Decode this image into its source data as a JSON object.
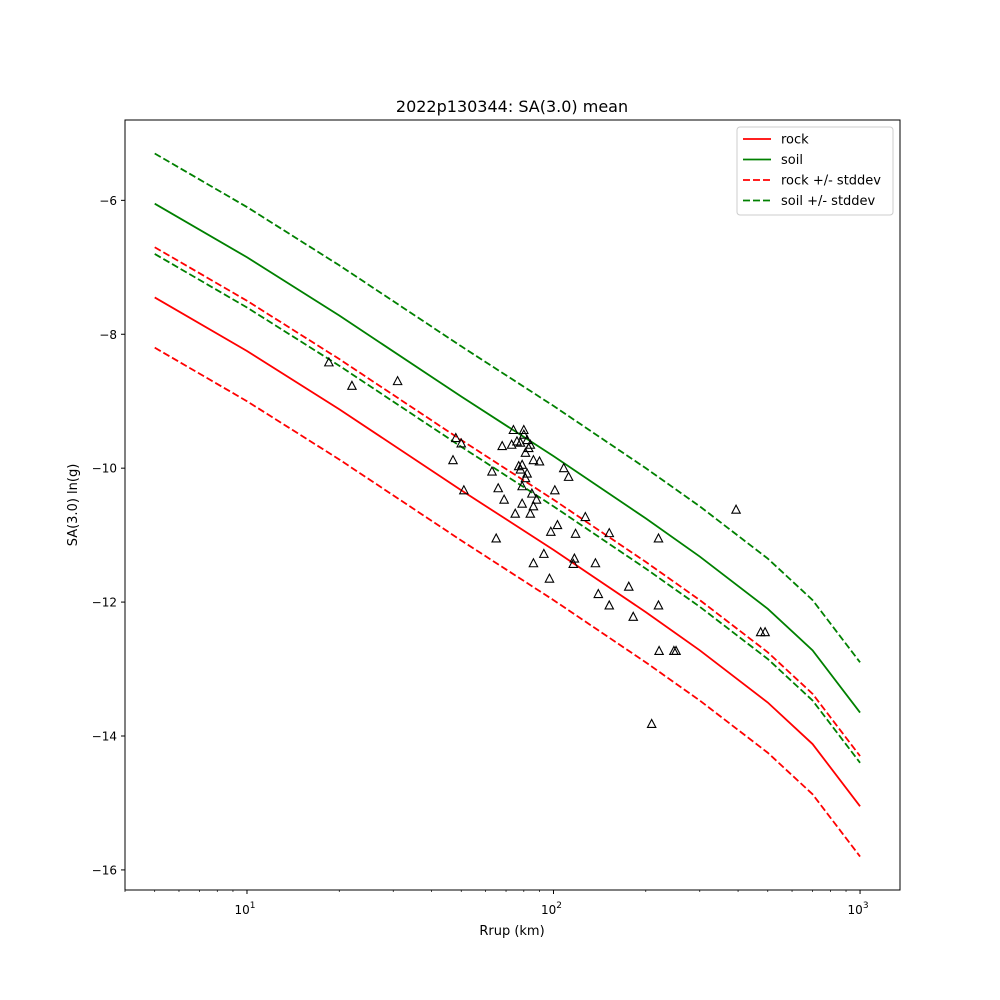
{
  "chart_data": {
    "type": "line",
    "title": "2022p130344: SA(3.0) mean",
    "xlabel": "Rrup (km)",
    "ylabel": "SA(3.0) ln(g)",
    "xscale": "log",
    "xlim": [
      4,
      1350
    ],
    "ylim": [
      -16.3,
      -4.8
    ],
    "xticks": [
      {
        "value": 10,
        "base": "10",
        "exp": "1"
      },
      {
        "value": 100,
        "base": "10",
        "exp": "2"
      },
      {
        "value": 1000,
        "base": "10",
        "exp": "3"
      }
    ],
    "yticks": [
      {
        "value": -16,
        "label": "−16"
      },
      {
        "value": -14,
        "label": "−14"
      },
      {
        "value": -12,
        "label": "−12"
      },
      {
        "value": -10,
        "label": "−10"
      },
      {
        "value": -8,
        "label": "−8"
      },
      {
        "value": -6,
        "label": "−6"
      }
    ],
    "grid": false,
    "legend_position": "top-right",
    "legend": [
      {
        "label": "rock",
        "color": "#ff0000",
        "dash": "solid"
      },
      {
        "label": "soil",
        "color": "#008000",
        "dash": "solid"
      },
      {
        "label": "rock +/- stddev",
        "color": "#ff0000",
        "dash": "dashed"
      },
      {
        "label": "soil +/- stddev",
        "color": "#008000",
        "dash": "dashed"
      }
    ],
    "x": [
      5,
      10,
      20,
      50,
      100,
      200,
      300,
      500,
      700,
      1000
    ],
    "series": [
      {
        "name": "rock",
        "color": "#ff0000",
        "dash": "solid",
        "values": [
          -7.45,
          -8.25,
          -9.12,
          -10.33,
          -11.22,
          -12.15,
          -12.72,
          -13.5,
          -14.12,
          -15.05
        ]
      },
      {
        "name": "soil",
        "color": "#008000",
        "dash": "solid",
        "values": [
          -6.05,
          -6.85,
          -7.72,
          -8.93,
          -9.82,
          -10.75,
          -11.32,
          -12.1,
          -12.72,
          -13.65
        ]
      },
      {
        "name": "rock +/- stddev",
        "color": "#ff0000",
        "dash": "dashed",
        "values": [
          -6.7,
          -7.5,
          -8.37,
          -9.58,
          -10.47,
          -11.4,
          -11.97,
          -12.75,
          -13.37,
          -14.3
        ]
      },
      {
        "name": "rock +/- stddev",
        "color": "#ff0000",
        "dash": "dashed",
        "legend": false,
        "values": [
          -8.2,
          -9.0,
          -9.87,
          -11.08,
          -11.97,
          -12.9,
          -13.47,
          -14.25,
          -14.87,
          -15.8
        ]
      },
      {
        "name": "soil +/- stddev",
        "color": "#008000",
        "dash": "dashed",
        "values": [
          -5.3,
          -6.1,
          -6.97,
          -8.18,
          -9.07,
          -10.0,
          -10.57,
          -11.35,
          -11.97,
          -12.9
        ]
      },
      {
        "name": "soil +/- stddev",
        "color": "#008000",
        "dash": "dashed",
        "legend": false,
        "values": [
          -6.8,
          -7.6,
          -8.47,
          -9.68,
          -10.57,
          -11.5,
          -12.07,
          -12.85,
          -13.47,
          -14.4
        ]
      }
    ],
    "observations": {
      "marker": "triangle",
      "points": [
        [
          18.5,
          -8.42
        ],
        [
          22,
          -8.77
        ],
        [
          31,
          -8.7
        ],
        [
          47,
          -9.88
        ],
        [
          48,
          -9.55
        ],
        [
          50,
          -9.63
        ],
        [
          51,
          -10.33
        ],
        [
          63,
          -10.05
        ],
        [
          65,
          -11.05
        ],
        [
          66,
          -10.3
        ],
        [
          68,
          -9.67
        ],
        [
          69,
          -10.47
        ],
        [
          73,
          -9.65
        ],
        [
          74,
          -9.43
        ],
        [
          75,
          -10.68
        ],
        [
          76,
          -9.6
        ],
        [
          77,
          -9.97
        ],
        [
          78,
          -10.02
        ],
        [
          78,
          -9.62
        ],
        [
          79,
          -9.95
        ],
        [
          79,
          -10.27
        ],
        [
          79,
          -10.53
        ],
        [
          80,
          -9.5
        ],
        [
          80,
          -9.43
        ],
        [
          81,
          -10.15
        ],
        [
          81,
          -9.77
        ],
        [
          82,
          -9.58
        ],
        [
          82,
          -10.08
        ],
        [
          83,
          -9.7
        ],
        [
          84,
          -9.65
        ],
        [
          84,
          -10.68
        ],
        [
          85,
          -10.38
        ],
        [
          86,
          -9.88
        ],
        [
          86,
          -10.57
        ],
        [
          86,
          -11.42
        ],
        [
          88,
          -10.47
        ],
        [
          90,
          -9.9
        ],
        [
          93,
          -11.28
        ],
        [
          97,
          -11.65
        ],
        [
          98,
          -10.95
        ],
        [
          101,
          -10.33
        ],
        [
          103,
          -10.85
        ],
        [
          108,
          -10.0
        ],
        [
          112,
          -10.13
        ],
        [
          116,
          -11.43
        ],
        [
          117,
          -11.35
        ],
        [
          118,
          -10.98
        ],
        [
          127,
          -10.73
        ],
        [
          137,
          -11.42
        ],
        [
          140,
          -11.88
        ],
        [
          152,
          -10.97
        ],
        [
          152,
          -12.05
        ],
        [
          176,
          -11.77
        ],
        [
          182,
          -12.22
        ],
        [
          209,
          -13.82
        ],
        [
          220,
          -11.05
        ],
        [
          220,
          -12.05
        ],
        [
          221,
          -12.73
        ],
        [
          247,
          -12.73
        ],
        [
          251,
          -12.73
        ],
        [
          394,
          -10.62
        ],
        [
          474,
          -12.45
        ],
        [
          490,
          -12.45
        ]
      ]
    }
  }
}
